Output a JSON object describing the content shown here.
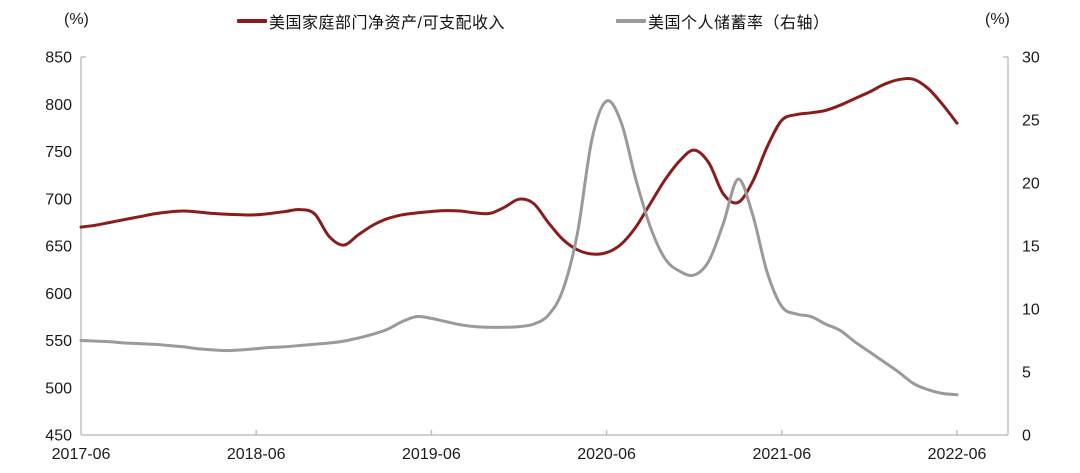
{
  "chart_data": {
    "type": "line",
    "title": "",
    "x_axis": {
      "tick_labels": [
        "2017-06",
        "2018-06",
        "2019-06",
        "2020-06",
        "2021-06",
        "2022-06"
      ],
      "tick_months": [
        0,
        12,
        24,
        36,
        48,
        60
      ],
      "start": "2017-06",
      "end": "2022-06",
      "cadence": "monthly"
    },
    "left_axis": {
      "label": "(%)",
      "min": 450,
      "max": 850,
      "ticks": [
        850,
        800,
        750,
        700,
        650,
        600,
        550,
        500,
        450
      ]
    },
    "right_axis": {
      "label": "(%)",
      "min": 0,
      "max": 30,
      "ticks": [
        30,
        25,
        20,
        15,
        10,
        5,
        0
      ]
    },
    "grid": "off",
    "legend_position": "top-center",
    "series": [
      {
        "name": "美国家庭部门净资产/可支配收入",
        "axis": "left",
        "color": "#8b1c1c",
        "stroke_width": 3,
        "x_months": [
          0,
          1,
          2,
          3,
          4,
          5,
          6,
          7,
          8,
          9,
          10,
          11,
          12,
          13,
          14,
          15,
          16,
          17,
          18,
          19,
          20,
          21,
          22,
          23,
          24,
          25,
          26,
          27,
          28,
          29,
          30,
          31,
          32,
          33,
          34,
          35,
          36,
          37,
          38,
          39,
          40,
          41,
          42,
          43,
          44,
          45,
          46,
          47,
          48,
          49,
          50,
          51,
          52,
          53,
          54,
          55,
          56,
          57,
          58,
          59,
          60
        ],
        "values": [
          670,
          672,
          675,
          678,
          681,
          684,
          686,
          687,
          686,
          684.5,
          683.5,
          683,
          683,
          684.5,
          686.5,
          688.5,
          684,
          660,
          651,
          662,
          672,
          679,
          683,
          685,
          686.5,
          687.5,
          687,
          685,
          684.5,
          691,
          699.5,
          695,
          675,
          657,
          646,
          641.5,
          643,
          652,
          670,
          695,
          720,
          740,
          751.5,
          738,
          705,
          696,
          718,
          755,
          783,
          789,
          791,
          793.5,
          799,
          806,
          813,
          821,
          826,
          826.5,
          817,
          800,
          780
        ]
      },
      {
        "name": "美国个人储蓄率（右轴）",
        "axis": "right",
        "color": "#9a9a9a",
        "stroke_width": 3,
        "x_months": [
          0,
          1,
          2,
          3,
          4,
          5,
          6,
          7,
          8,
          9,
          10,
          11,
          12,
          13,
          14,
          15,
          16,
          17,
          18,
          19,
          20,
          21,
          22,
          23,
          24,
          25,
          26,
          27,
          28,
          29,
          30,
          31,
          32,
          33,
          34,
          35,
          36,
          37,
          38,
          39,
          40,
          41,
          42,
          43,
          44,
          45,
          46,
          47,
          48,
          49,
          50,
          51,
          52,
          53,
          54,
          55,
          56,
          57,
          58,
          59,
          60
        ],
        "values": [
          7.5,
          7.45,
          7.4,
          7.3,
          7.25,
          7.2,
          7.1,
          7.0,
          6.85,
          6.75,
          6.7,
          6.75,
          6.85,
          6.95,
          7.0,
          7.1,
          7.2,
          7.3,
          7.45,
          7.7,
          8.0,
          8.4,
          9.0,
          9.4,
          9.25,
          9.0,
          8.75,
          8.6,
          8.55,
          8.55,
          8.6,
          8.8,
          9.5,
          11.5,
          16.0,
          23.5,
          26.5,
          24.8,
          20.3,
          16.5,
          14.0,
          13.0,
          12.7,
          13.8,
          16.8,
          20.3,
          17.5,
          12.9,
          10.2,
          9.6,
          9.4,
          8.8,
          8.3,
          7.4,
          6.6,
          5.8,
          5.0,
          4.1,
          3.6,
          3.3,
          3.2
        ]
      }
    ],
    "axis_line_color": "#c0c0c0",
    "tick_text_color": "#1a1a1a"
  },
  "legend": {
    "items": [
      {
        "label": "美国家庭部门净资产/可支配收入"
      },
      {
        "label": "美国个人储蓄率（右轴）"
      }
    ]
  }
}
